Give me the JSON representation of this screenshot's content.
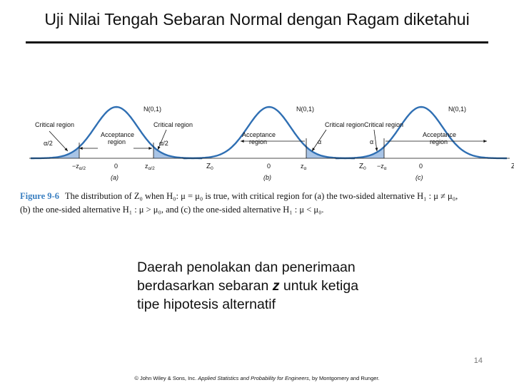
{
  "title": "Uji Nilai Tengah Sebaran Normal dengan Ragam diketahui",
  "figure": {
    "dist_label": "N(0,1)",
    "critical_region": "Critical region",
    "acceptance": "Acceptance",
    "region": "region",
    "zero": "0",
    "axis": "Z",
    "axis_sub": "0",
    "panels": [
      {
        "id": "a",
        "label": "(a)",
        "alpha_left": "α/2",
        "alpha_right": "α/2",
        "z_left": "−z",
        "z_left_sub": "α/2",
        "z_right": "z",
        "z_right_sub": "α/2"
      },
      {
        "id": "b",
        "label": "(b)",
        "alpha": "α",
        "z": "z",
        "z_sub": "α"
      },
      {
        "id": "c",
        "label": "(c)",
        "alpha": "α",
        "z": "−z",
        "z_sub": "α"
      }
    ],
    "accent_color": "#a8c4e6",
    "curve_color": "#2f6fb3"
  },
  "caption": {
    "label": "Figure 9-6",
    "line1": "The distribution of Z₀ when H₀: μ = μ₀ is true, with critical region for (a) the two-sided alternative H₁ : μ ≠ μ₀,",
    "line2": "(b) the one-sided alternative H₁ : μ > μ₀, and (c) the one-sided alternative H₁ : μ < μ₀."
  },
  "description": {
    "line1": "Daerah penolakan dan penerimaan",
    "line2_pre": "berdasarkan sebaran",
    "line2_bold": "z",
    "line2_post": "untuk ketiga",
    "line3": "tipe hipotesis alternatif"
  },
  "page_number": "14",
  "credit": {
    "pre": "© John Wiley & Sons, Inc.",
    "book": "Applied Statistics and Probability for Engineers",
    "post": ", by Montgomery and Runger."
  }
}
